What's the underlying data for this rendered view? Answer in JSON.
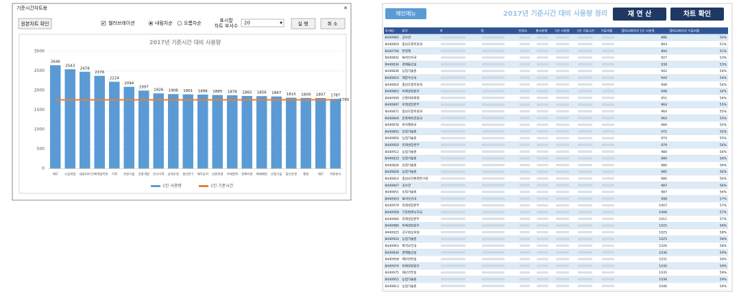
{
  "dialog": {
    "title": "기준시간차트용",
    "source_button": "원본차트 확인",
    "checkbox": "챌러브레이션",
    "radio_desc": "내림차순",
    "radio_asc": "오름차순",
    "count_label_1": "표시할",
    "count_label_2": "차트 부서수",
    "count_value": "20",
    "run": "실 행",
    "cancel": "취 소"
  },
  "chart_data": {
    "type": "bar",
    "title": "2017년 기준시간 대비 사용량",
    "categories": [
      "재무",
      "시설개발",
      "세일리아",
      "인재개발지원",
      "기획",
      "전원기술",
      "공항개발",
      "인사기획",
      "교육운영",
      "생산연구",
      "재무분석",
      "강원연결",
      "국제협력",
      "경제지원",
      "재해예방",
      "산업기술",
      "홍보운영",
      "행정",
      "재무",
      "자원봉사"
    ],
    "series": [
      {
        "name": "1인 사용량",
        "color": "#5b9bd5",
        "values": [
          2646,
          2543,
          2478,
          2376,
          2224,
          2094,
          1997,
          1926,
          1908,
          1901,
          1896,
          1885,
          1878,
          1860,
          1856,
          1847,
          1815,
          1809,
          1807,
          1787
        ]
      },
      {
        "name": "1인 기준시간",
        "type": "line",
        "color": "#ed7d31",
        "values": [
          1760,
          1760,
          1760,
          1760,
          1760,
          1760,
          1760,
          1760,
          1760,
          1760,
          1760,
          1760,
          1760,
          1760,
          1760,
          1760,
          1760,
          1760,
          1760,
          1760
        ]
      }
    ],
    "ylim": [
      0,
      3000
    ],
    "yticks": [
      0,
      500,
      1000,
      1500,
      2000,
      2500,
      3000
    ],
    "grid": true,
    "legend": "bottom"
  },
  "sheet": {
    "menu": "메인메뉴",
    "title": "2017년 기준시간 대비 사용량 정리",
    "recalc": "재 연 산",
    "chart": "차트 확인",
    "headers": [
      "부서ID",
      "본부",
      "과",
      "팀",
      "인원수",
      "총사용량",
      "1인 사용량",
      "1인 기준시간",
      "기준비율",
      "캘리브레이션 1인 사용량",
      "캘리브레이션 기준비율"
    ],
    "rows": [
      [
        "8440982",
        "공보관",
        886,
        "50%"
      ],
      [
        "8440859",
        "충남도청지원과",
        893,
        "51%"
      ],
      [
        "8440794",
        "본청제",
        894,
        "51%"
      ],
      [
        "8440842",
        "복지보건국",
        927,
        "53%"
      ],
      [
        "8440834",
        "경제통상실",
        938,
        "53%"
      ],
      [
        "8440836",
        "농업기술원",
        942,
        "54%"
      ],
      [
        "8440810",
        "해양수산국",
        944,
        "54%"
      ],
      [
        "8440816",
        "충남도청지원과",
        948,
        "54%"
      ],
      [
        "8440863",
        "미래성장본부",
        948,
        "54%"
      ],
      [
        "8440999",
        "신청자위원회",
        951,
        "54%"
      ],
      [
        "8440897",
        "미래성장본부",
        964,
        "55%"
      ],
      [
        "8440871",
        "충남도청지원과",
        964,
        "55%"
      ],
      [
        "8440844",
        "문화체육관광국",
        964,
        "55%"
      ],
      [
        "8440878",
        "자치행정국",
        966,
        "55%"
      ],
      [
        "8440855",
        "농업기술원",
        972,
        "55%"
      ],
      [
        "8440856",
        "농업기술원",
        974,
        "55%"
      ],
      [
        "8440950",
        "미래성장본부",
        979,
        "56%"
      ],
      [
        "8440912",
        "농업기술원",
        980,
        "56%"
      ],
      [
        "8440833",
        "농업기술원",
        980,
        "56%"
      ],
      [
        "8440826",
        "농업기술원",
        980,
        "56%"
      ],
      [
        "8440828",
        "농업기술원",
        985,
        "56%"
      ],
      [
        "8440814",
        "충남보건환경연구원",
        985,
        "56%"
      ],
      [
        "8440847",
        "공보관",
        987,
        "56%"
      ],
      [
        "8440851",
        "농업기술원",
        987,
        "56%"
      ],
      [
        "8440903",
        "복지보건국",
        998,
        "57%"
      ],
      [
        "8440979",
        "미래성장본부",
        1007,
        "57%"
      ],
      [
        "8440958",
        "기후환경녹지국",
        1008,
        "57%"
      ],
      [
        "8440960",
        "미래성장본부",
        1011,
        "57%"
      ],
      [
        "8440980",
        "미래성장본부",
        1025,
        "58%"
      ],
      [
        "8440925",
        "공무원교육원",
        1025,
        "58%"
      ],
      [
        "8440924",
        "농업기술원",
        1025,
        "58%"
      ],
      [
        "8440963",
        "복지보건국",
        1026,
        "58%"
      ],
      [
        "8440834",
        "경제통상실",
        1030,
        "59%"
      ],
      [
        "8440958",
        "재난안전실",
        1031,
        "59%"
      ],
      [
        "8440974",
        "미래성장본부",
        1035,
        "59%"
      ],
      [
        "8440975",
        "재난안전실",
        1035,
        "59%"
      ],
      [
        "8440951",
        "농업기술원",
        1036,
        "59%"
      ],
      [
        "8440813",
        "농업기술원",
        1046,
        "59%"
      ]
    ]
  }
}
